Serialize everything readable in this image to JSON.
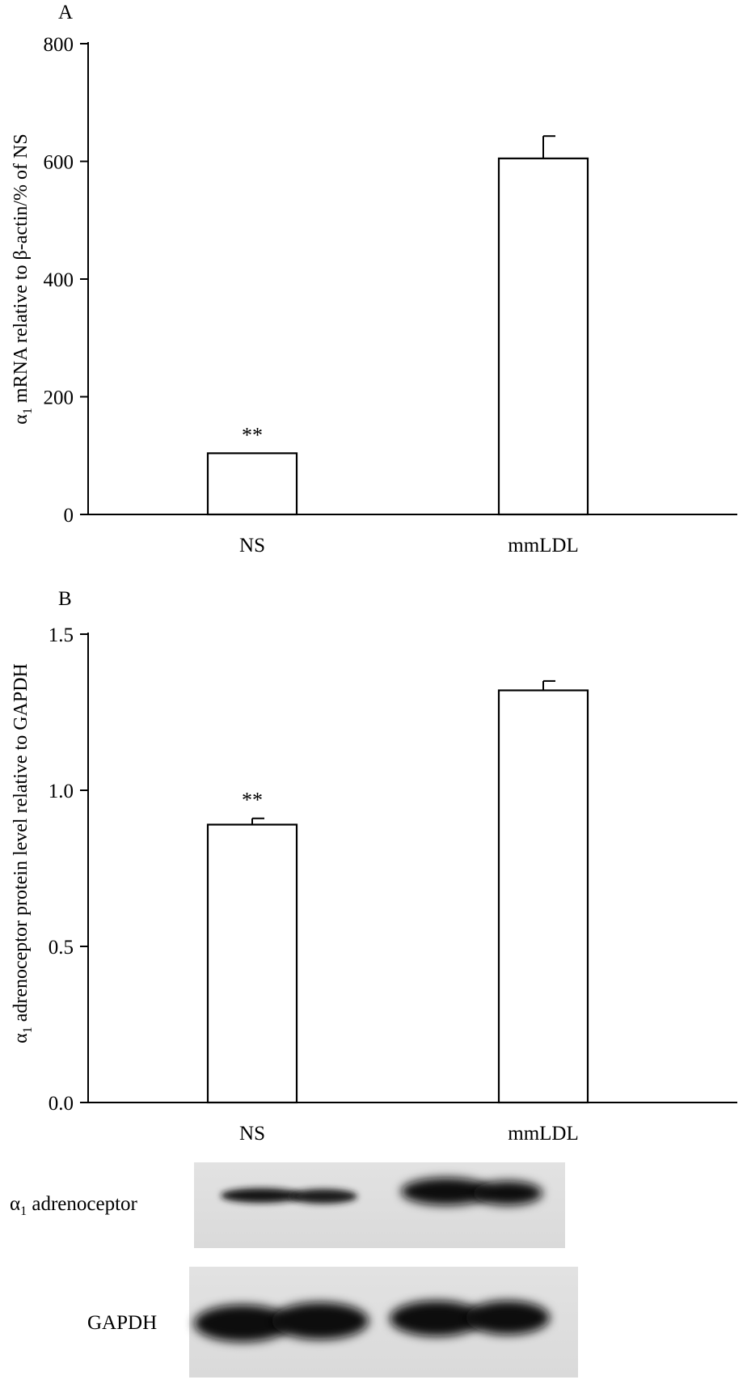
{
  "chart_data": [
    {
      "type": "bar",
      "panel": "A",
      "categories": [
        "NS",
        "mmLDL"
      ],
      "values": [
        104,
        605
      ],
      "errors": [
        0,
        38
      ],
      "annotations": [
        "**",
        ""
      ],
      "ylabel_symbol": "α",
      "ylabel_sub": "1",
      "ylabel_text": " mRNA relative to β-actin/% of NS",
      "ylim": [
        0,
        800
      ],
      "yticks": [
        "0",
        "200",
        "400",
        "600",
        "800"
      ],
      "ytick_values": [
        0,
        200,
        400,
        600,
        800
      ]
    },
    {
      "type": "bar",
      "panel": "B",
      "categories": [
        "NS",
        "mmLDL"
      ],
      "values": [
        0.89,
        1.32
      ],
      "errors": [
        0.02,
        0.03
      ],
      "annotations": [
        "**",
        ""
      ],
      "ylabel_symbol": "α",
      "ylabel_sub": "1",
      "ylabel_text": " adrenoceptor protein level relative to GAPDH",
      "ylim": [
        0,
        1.5
      ],
      "yticks": [
        "0.0",
        "0.5",
        "1.0",
        "1.5"
      ],
      "ytick_values": [
        0,
        0.5,
        1.0,
        1.5
      ]
    }
  ],
  "blot": {
    "row1_symbol": "α",
    "row1_sub": "1",
    "row1_text": " adrenoceptor",
    "row2_label": "GAPDH"
  }
}
